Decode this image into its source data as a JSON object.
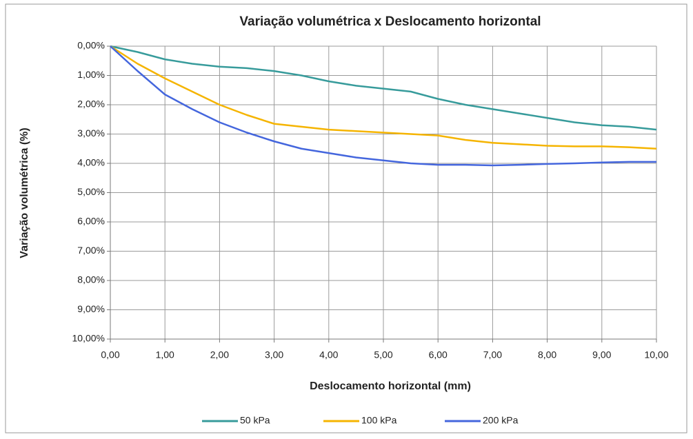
{
  "chart_data": {
    "type": "line",
    "title": "Variação volumétrica x Deslocamento horizontal",
    "x_label": "Deslocamento horizontal (mm)",
    "y_label": "Variação volumétrica (%)",
    "x": [
      0,
      0.5,
      1,
      1.5,
      2,
      2.5,
      3,
      3.5,
      4,
      4.5,
      5,
      5.5,
      6,
      6.5,
      7,
      7.5,
      8,
      8.5,
      9,
      9.5,
      10
    ],
    "series": [
      {
        "name": "50 kPa",
        "color": "#379b9b",
        "values": [
          0,
          0.2,
          0.45,
          0.6,
          0.7,
          0.75,
          0.85,
          1.0,
          1.2,
          1.35,
          1.45,
          1.55,
          1.8,
          2.0,
          2.15,
          2.3,
          2.45,
          2.6,
          2.7,
          2.75,
          2.85
        ]
      },
      {
        "name": "100 kPa",
        "color": "#f5b400",
        "values": [
          0,
          0.6,
          1.1,
          1.55,
          2.0,
          2.35,
          2.65,
          2.75,
          2.85,
          2.9,
          2.95,
          3.0,
          3.05,
          3.2,
          3.3,
          3.35,
          3.4,
          3.42,
          3.42,
          3.45,
          3.5
        ]
      },
      {
        "name": "200 kPa",
        "color": "#4466dd",
        "values": [
          0,
          0.85,
          1.65,
          2.15,
          2.6,
          2.95,
          3.25,
          3.5,
          3.65,
          3.8,
          3.9,
          4.0,
          4.05,
          4.05,
          4.07,
          4.05,
          4.02,
          4.0,
          3.97,
          3.95,
          3.95
        ]
      }
    ],
    "xlim": [
      0,
      10
    ],
    "xticks": [
      {
        "value": 0,
        "label": "0,00"
      },
      {
        "value": 1,
        "label": "1,00"
      },
      {
        "value": 2,
        "label": "2,00"
      },
      {
        "value": 3,
        "label": "3,00"
      },
      {
        "value": 4,
        "label": "4,00"
      },
      {
        "value": 5,
        "label": "5,00"
      },
      {
        "value": 6,
        "label": "6,00"
      },
      {
        "value": 7,
        "label": "7,00"
      },
      {
        "value": 8,
        "label": "8,00"
      },
      {
        "value": 9,
        "label": "9,00"
      },
      {
        "value": 10,
        "label": "10,00"
      }
    ],
    "ylim": [
      0,
      10
    ],
    "y_reversed": true,
    "yticks": [
      {
        "value": 0,
        "label": "0,00%"
      },
      {
        "value": 1,
        "label": "1,00%"
      },
      {
        "value": 2,
        "label": "2,00%"
      },
      {
        "value": 3,
        "label": "3,00%"
      },
      {
        "value": 4,
        "label": "4,00%"
      },
      {
        "value": 5,
        "label": "5,00%"
      },
      {
        "value": 6,
        "label": "6,00%"
      },
      {
        "value": 7,
        "label": "7,00%"
      },
      {
        "value": 8,
        "label": "8,00%"
      },
      {
        "value": 9,
        "label": "9,00%"
      },
      {
        "value": 10,
        "label": "10,00%"
      }
    ],
    "grid": true,
    "legend": "bottom"
  }
}
